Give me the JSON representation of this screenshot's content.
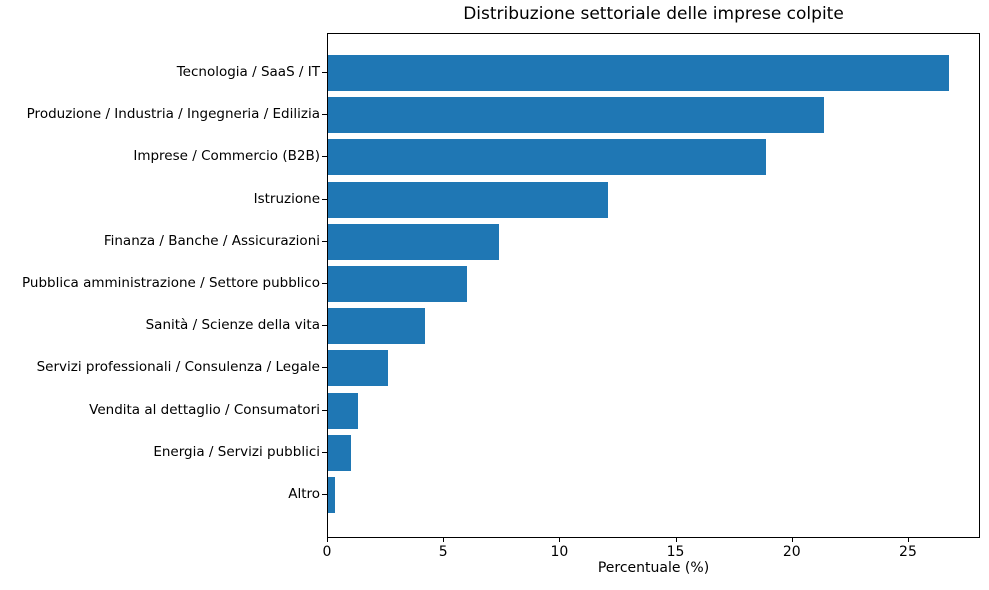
{
  "chart_data": {
    "type": "bar",
    "orientation": "horizontal",
    "title": "Distribuzione settoriale delle imprese colpite",
    "xlabel": "Percentuale (%)",
    "ylabel": "",
    "categories": [
      "Tecnologia / SaaS / IT",
      "Produzione / Industria / Ingegneria / Edilizia",
      "Imprese / Commercio (B2B)",
      "Istruzione",
      "Finanza / Banche / Assicurazioni",
      "Pubblica amministrazione / Settore pubblico",
      "Sanità / Scienze della vita",
      "Servizi professionali / Consulenza / Legale",
      "Vendita al dettaglio / Consumatori",
      "Energia / Servizi pubblici",
      "Altro"
    ],
    "values": [
      26.8,
      21.4,
      18.9,
      12.1,
      7.4,
      6.0,
      4.2,
      2.6,
      1.3,
      1.0,
      0.3
    ],
    "xlim": [
      0,
      28.1
    ],
    "xticks": [
      0,
      5,
      10,
      15,
      20,
      25
    ],
    "bar_color": "#1f77b4",
    "axis_color": "#000000",
    "grid": false,
    "legend_position": "none"
  }
}
